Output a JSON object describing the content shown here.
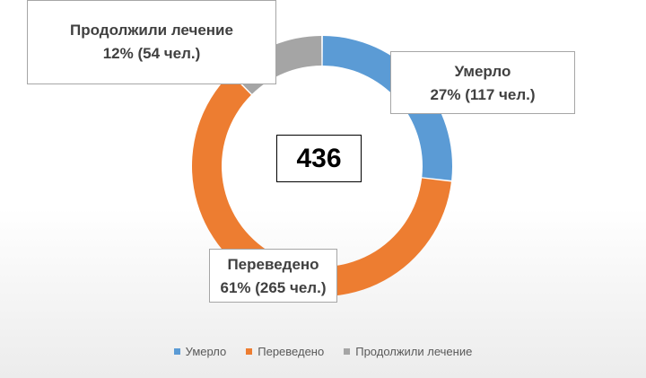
{
  "chart_data": {
    "type": "donut",
    "center_label": "436",
    "slices": [
      {
        "name": "Умерло",
        "label_line1": "Умерло",
        "label_line2": "27% (117 чел.)",
        "percent": 27,
        "count": 117,
        "color": "#5b9bd5"
      },
      {
        "name": "Переведено",
        "label_line1": "Переведено",
        "label_line2": "61% (265 чел.)",
        "percent": 61,
        "count": 265,
        "color": "#ed7d31"
      },
      {
        "name": "Продолжили лечение",
        "label_line1": "Продолжили лечение",
        "label_line2": "12% (54 чел.)",
        "percent": 12,
        "count": 54,
        "color": "#a5a5a5"
      }
    ],
    "legend_placement": "bottom"
  }
}
